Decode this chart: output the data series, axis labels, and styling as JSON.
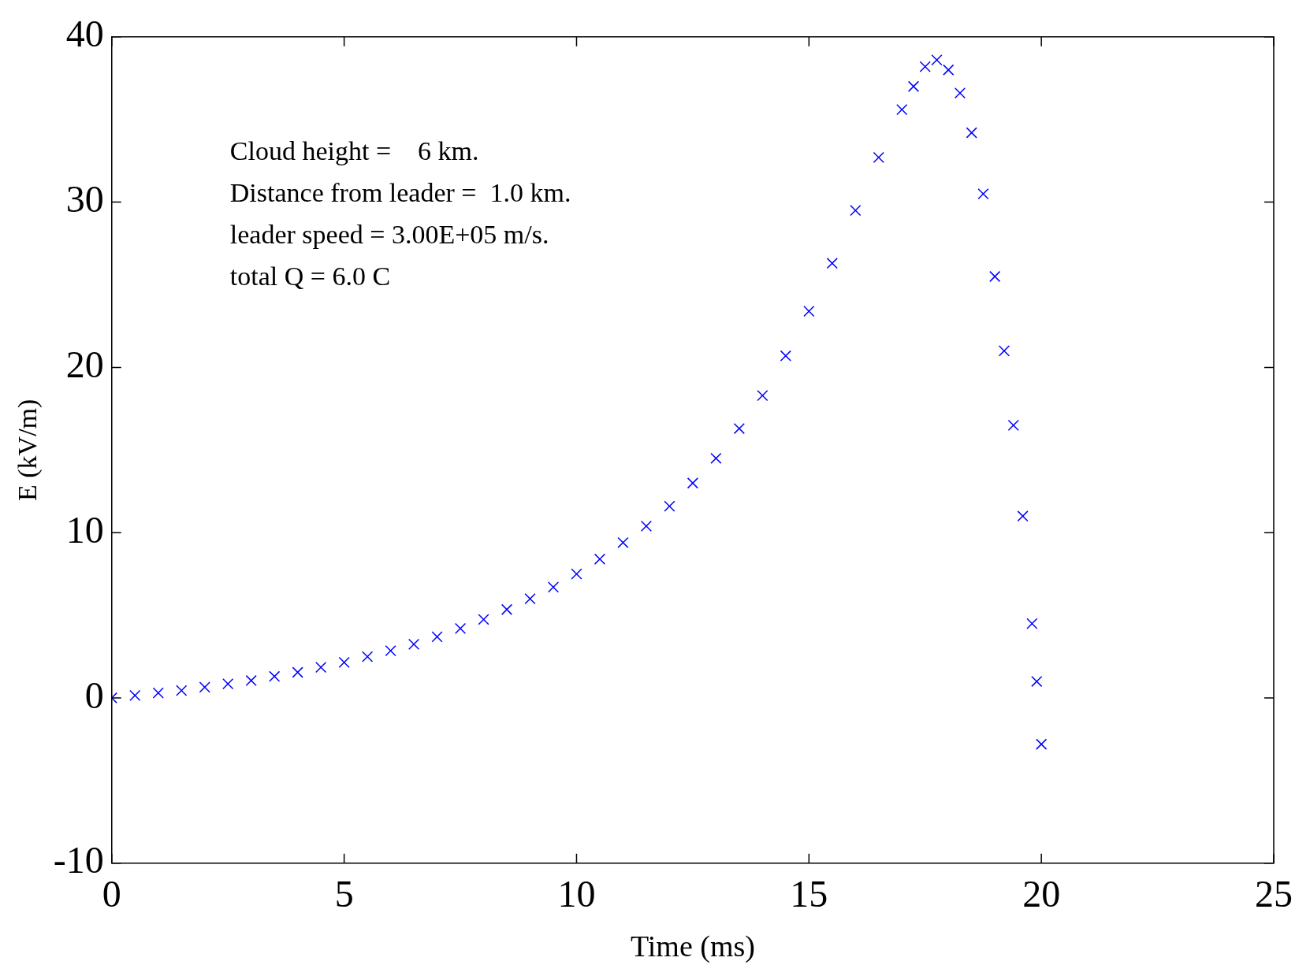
{
  "chart_data": {
    "type": "scatter",
    "xlabel": "Time (ms)",
    "ylabel": "E (kV/m)",
    "annotations": [
      "Cloud height =    6 km.",
      "Distance from leader =  1.0 km.",
      "leader speed = 3.00E+05 m/s.",
      "total Q = 6.0 C"
    ],
    "xlim": [
      0,
      25
    ],
    "xticks": [
      0,
      5,
      10,
      15,
      20,
      25
    ],
    "ylim": [
      -10,
      40
    ],
    "yticks": [
      -10,
      0,
      10,
      20,
      30,
      40
    ],
    "grid": false,
    "legend": false,
    "marker": "cross",
    "series": [
      {
        "color": "#0000ff",
        "x": [
          0,
          0.5,
          1,
          1.5,
          2,
          2.5,
          3,
          3.5,
          4,
          4.5,
          5,
          5.5,
          6,
          6.5,
          7,
          7.5,
          8,
          8.5,
          9,
          9.5,
          10,
          10.5,
          11,
          11.5,
          12,
          12.5,
          13,
          13.5,
          14,
          14.5,
          15,
          15.5,
          16,
          16.5,
          17,
          17.25,
          17.5,
          17.75,
          18,
          18.25,
          18.5,
          18.75,
          19,
          19.2,
          19.4,
          19.6,
          19.8,
          19.9,
          20
        ],
        "values": [
          0,
          0.15,
          0.3,
          0.45,
          0.65,
          0.85,
          1.05,
          1.3,
          1.55,
          1.85,
          2.15,
          2.5,
          2.85,
          3.25,
          3.7,
          4.2,
          4.75,
          5.35,
          6,
          6.7,
          7.5,
          8.4,
          9.4,
          10.4,
          11.6,
          13,
          14.5,
          16.3,
          18.3,
          20.7,
          23.4,
          26.3,
          29.5,
          32.7,
          35.6,
          37,
          38.2,
          38.6,
          38,
          36.6,
          34.2,
          30.5,
          25.5,
          21,
          16.5,
          11,
          4.5,
          1,
          -2.8
        ]
      }
    ]
  }
}
